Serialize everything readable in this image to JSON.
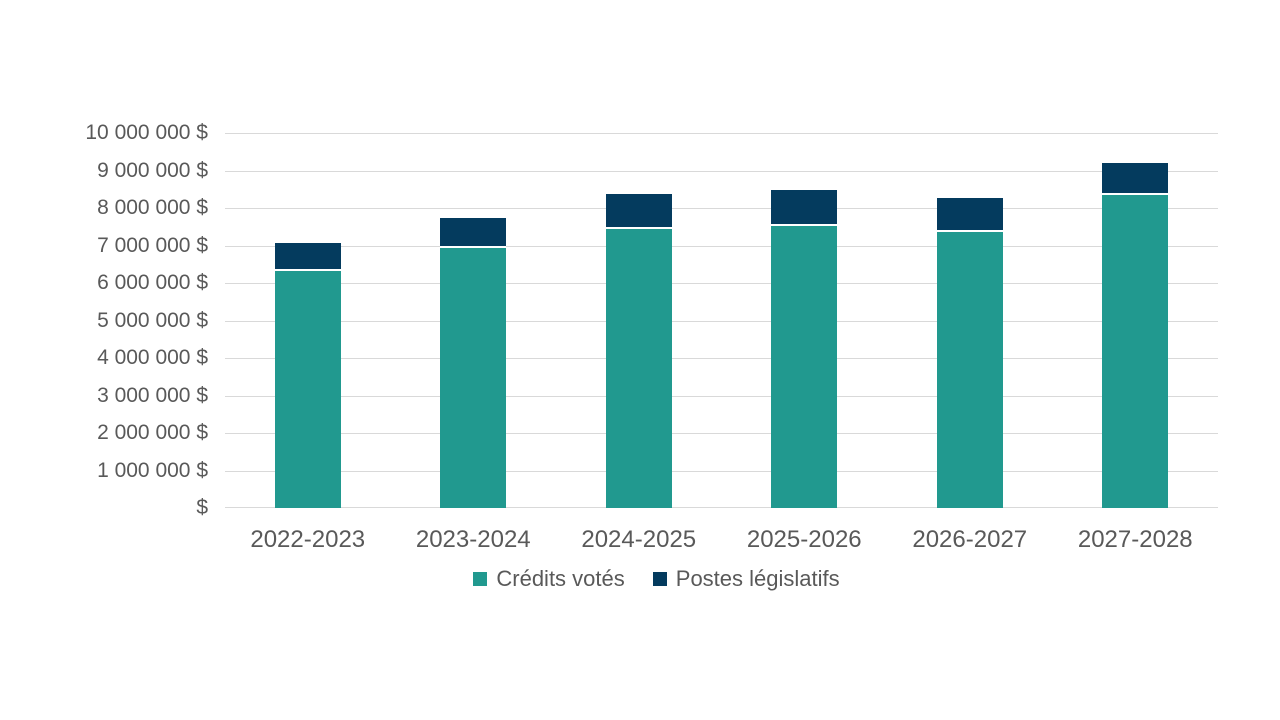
{
  "chart_data": {
    "type": "bar",
    "stacked": true,
    "title": "",
    "xlabel": "",
    "ylabel": "",
    "categories": [
      "2022-2023",
      "2023-2024",
      "2024-2025",
      "2025-2026",
      "2026-2027",
      "2027-2028"
    ],
    "series": [
      {
        "name": "Crédits votés",
        "color": "#21998F",
        "values": [
          6320000,
          6930000,
          7440000,
          7510000,
          7360000,
          8350000
        ]
      },
      {
        "name": "Postes législatifs",
        "color": "#043B5E",
        "values": [
          750000,
          810000,
          940000,
          960000,
          920000,
          850000
        ]
      }
    ],
    "totals": [
      7070000,
      7740000,
      8380000,
      8470000,
      8280000,
      9200000
    ],
    "ylim": [
      0,
      10000000
    ],
    "y_tick_interval": 1000000,
    "y_tick_labels_top_to_bottom": [
      "10 000 000 $",
      "9 000 000 $",
      "8 000 000 $",
      "7 000 000 $",
      "6 000 000 $",
      "5 000 000 $",
      "4 000 000 $",
      "3 000 000 $",
      "2 000 000 $",
      "1 000 000 $",
      "$"
    ],
    "grid": "horizontal",
    "legend_position": "bottom"
  },
  "styles": {
    "background": "#FFFFFF",
    "axis_text_color": "#595959",
    "gridline_color": "#D9D9D9",
    "bar_separator_color": "#FFFFFF"
  }
}
